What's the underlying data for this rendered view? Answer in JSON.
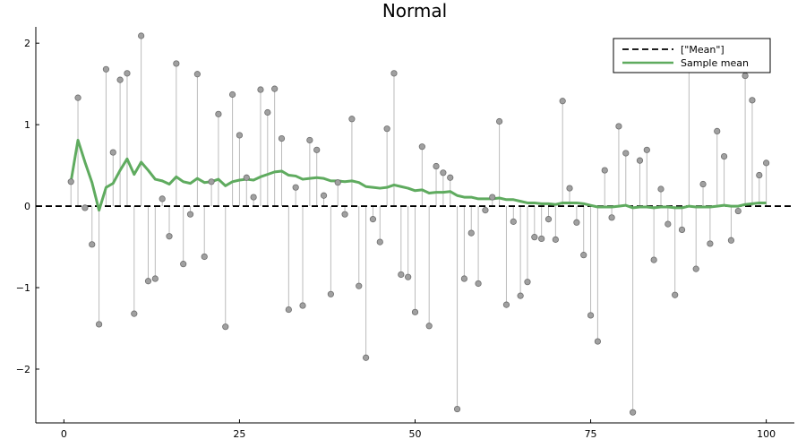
{
  "chart_data": {
    "type": "scatter",
    "title": "Normal",
    "xlabel": "",
    "ylabel": "",
    "xlim": [
      -4,
      104
    ],
    "ylim": [
      -2.66,
      2.2
    ],
    "xticks": [
      0,
      25,
      50,
      75,
      100
    ],
    "xtick_labels": [
      "0",
      "25",
      "50",
      "75",
      "100"
    ],
    "yticks": [
      -2,
      -1,
      0,
      1,
      2
    ],
    "ytick_labels": [
      "−2",
      "−1",
      "0",
      "1",
      "2"
    ],
    "grid": false,
    "legend_position": "top-right",
    "mean_value": 0,
    "colors": {
      "sample_points": "#a0a0a0",
      "sample_point_edge": "#6e6e6e",
      "stem": "#bbbbbb",
      "mean_line": "#000000",
      "running_mean": "#5fab5f",
      "axis": "#000000"
    },
    "series": [
      {
        "name": "",
        "kind": "stem-points",
        "x": [
          1,
          2,
          3,
          4,
          5,
          6,
          7,
          8,
          9,
          10,
          11,
          12,
          13,
          14,
          15,
          16,
          17,
          18,
          19,
          20,
          21,
          22,
          23,
          24,
          25,
          26,
          27,
          28,
          29,
          30,
          31,
          32,
          33,
          34,
          35,
          36,
          37,
          38,
          39,
          40,
          41,
          42,
          43,
          44,
          45,
          46,
          47,
          48,
          49,
          50,
          51,
          52,
          53,
          54,
          55,
          56,
          57,
          58,
          59,
          60,
          61,
          62,
          63,
          64,
          65,
          66,
          67,
          68,
          69,
          70,
          71,
          72,
          73,
          74,
          75,
          76,
          77,
          78,
          79,
          80,
          81,
          82,
          83,
          84,
          85,
          86,
          87,
          88,
          89,
          90,
          91,
          92,
          93,
          94,
          95,
          96,
          97,
          98,
          99,
          100
        ],
        "values": [
          0.3,
          1.33,
          -0.02,
          -0.47,
          -1.45,
          1.68,
          0.66,
          1.55,
          1.63,
          -1.32,
          2.09,
          -0.92,
          -0.89,
          0.09,
          -0.37,
          1.75,
          -0.71,
          -0.1,
          1.62,
          -0.62,
          0.3,
          1.13,
          -1.48,
          1.37,
          0.87,
          0.35,
          0.11,
          1.43,
          1.15,
          1.44,
          0.83,
          -1.27,
          0.23,
          -1.22,
          0.81,
          0.69,
          0.13,
          -1.08,
          0.29,
          -0.1,
          1.07,
          -0.98,
          -1.86,
          -0.16,
          -0.44,
          0.95,
          1.63,
          -0.84,
          -0.87,
          -1.3,
          0.73,
          -1.47,
          0.49,
          0.41,
          0.35,
          -2.49,
          -0.89,
          -0.33,
          -0.95,
          -0.05,
          0.11,
          1.04,
          -1.21,
          -0.19,
          -1.1,
          -0.93,
          -0.38,
          -0.4,
          -0.16,
          -0.41,
          1.29,
          0.22,
          -0.2,
          -0.6,
          -1.34,
          -1.66,
          0.44,
          -0.14,
          0.98,
          0.65,
          -2.53,
          0.56,
          0.69,
          -0.66,
          0.21,
          -0.22,
          -1.09,
          -0.29,
          1.98,
          -0.77,
          0.27,
          -0.46,
          0.92,
          0.61,
          -0.42,
          -0.06,
          1.6,
          1.3,
          0.38,
          0.53
        ]
      },
      {
        "name": "[\"Mean\"]",
        "kind": "hline",
        "y": 0
      },
      {
        "name": "Sample mean",
        "kind": "line",
        "x": [
          1,
          2,
          3,
          4,
          5,
          6,
          7,
          8,
          9,
          10,
          11,
          12,
          13,
          14,
          15,
          16,
          17,
          18,
          19,
          20,
          21,
          22,
          23,
          24,
          25,
          26,
          27,
          28,
          29,
          30,
          31,
          32,
          33,
          34,
          35,
          36,
          37,
          38,
          39,
          40,
          41,
          42,
          43,
          44,
          45,
          46,
          47,
          48,
          49,
          50,
          51,
          52,
          53,
          54,
          55,
          56,
          57,
          58,
          59,
          60,
          61,
          62,
          63,
          64,
          65,
          66,
          67,
          68,
          69,
          70,
          71,
          72,
          73,
          74,
          75,
          76,
          77,
          78,
          79,
          80,
          81,
          82,
          83,
          84,
          85,
          86,
          87,
          88,
          89,
          90,
          91,
          92,
          93,
          94,
          95,
          96,
          97,
          98,
          99,
          100
        ],
        "values": [
          0.3,
          0.81,
          0.54,
          0.29,
          -0.05,
          0.23,
          0.28,
          0.44,
          0.58,
          0.39,
          0.54,
          0.44,
          0.33,
          0.31,
          0.27,
          0.36,
          0.3,
          0.28,
          0.34,
          0.29,
          0.3,
          0.33,
          0.25,
          0.3,
          0.32,
          0.33,
          0.32,
          0.36,
          0.39,
          0.42,
          0.43,
          0.38,
          0.37,
          0.33,
          0.34,
          0.35,
          0.34,
          0.31,
          0.31,
          0.3,
          0.31,
          0.29,
          0.24,
          0.23,
          0.22,
          0.23,
          0.26,
          0.24,
          0.22,
          0.19,
          0.2,
          0.16,
          0.17,
          0.17,
          0.18,
          0.13,
          0.11,
          0.11,
          0.09,
          0.09,
          0.09,
          0.1,
          0.08,
          0.08,
          0.06,
          0.04,
          0.04,
          0.03,
          0.03,
          0.02,
          0.04,
          0.04,
          0.04,
          0.03,
          0.01,
          -0.01,
          -0.01,
          -0.01,
          0.0,
          0.01,
          -0.02,
          -0.01,
          -0.01,
          -0.02,
          -0.01,
          -0.01,
          -0.02,
          -0.02,
          0.0,
          -0.01,
          -0.01,
          -0.01,
          0.0,
          0.01,
          0.0,
          0.0,
          0.02,
          0.03,
          0.04,
          0.04
        ]
      }
    ]
  }
}
